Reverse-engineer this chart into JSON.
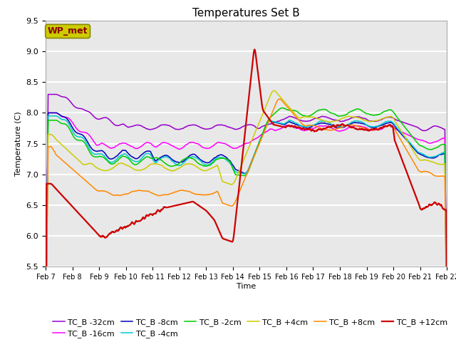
{
  "title": "Temperatures Set B",
  "xlabel": "Time",
  "ylabel": "Temperature (C)",
  "ylim": [
    5.5,
    9.5
  ],
  "xlim": [
    0,
    15
  ],
  "x_tick_labels": [
    "Feb 7",
    "Feb 8",
    "Feb 9",
    "Feb 10",
    "Feb 11",
    "Feb 12",
    "Feb 13",
    "Feb 14",
    "Feb 15",
    "Feb 16",
    "Feb 17",
    "Feb 18",
    "Feb 19",
    "Feb 20",
    "Feb 21",
    "Feb 22"
  ],
  "background_color": "#e8e8e8",
  "grid_color": "#ffffff",
  "legend_entries": [
    {
      "label": "TC_B -32cm",
      "color": "#9900cc"
    },
    {
      "label": "TC_B -16cm",
      "color": "#ff00ff"
    },
    {
      "label": "TC_B -8cm",
      "color": "#0000bb"
    },
    {
      "label": "TC_B -4cm",
      "color": "#00cccc"
    },
    {
      "label": "TC_B -2cm",
      "color": "#00cc00"
    },
    {
      "label": "TC_B +4cm",
      "color": "#cccc00"
    },
    {
      "label": "TC_B +8cm",
      "color": "#ff8800"
    },
    {
      "label": "TC_B +12cm",
      "color": "#cc0000"
    }
  ],
  "wp_met_box_facecolor": "#cccc00",
  "wp_met_text_color": "#8b0000",
  "wp_met_edge_color": "#888800"
}
